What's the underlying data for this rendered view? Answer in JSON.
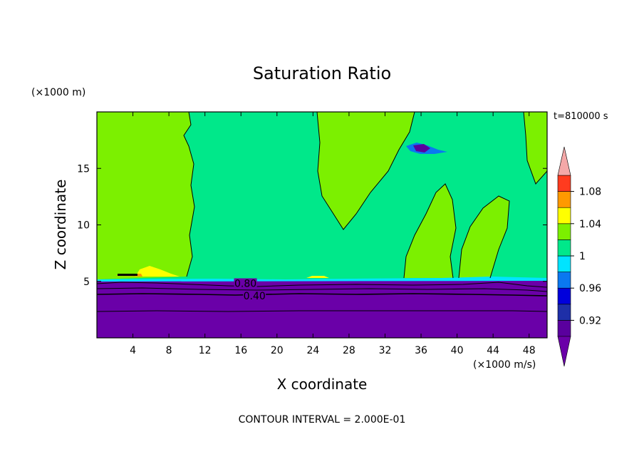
{
  "chart_data": {
    "type": "heatmap",
    "title": "Saturation Ratio",
    "xlabel": "X coordinate",
    "ylabel": "Z coordinate",
    "x_unit": "(×1000 m/s)",
    "y_unit": "(×1000 m)",
    "time_label": "t=810000 s",
    "footer": "CONTOUR INTERVAL = 2.000E-01",
    "xlim": [
      0,
      50
    ],
    "ylim": [
      0,
      20
    ],
    "x_ticks": [
      4,
      8,
      12,
      16,
      20,
      24,
      28,
      32,
      36,
      40,
      44,
      48
    ],
    "y_ticks": [
      5,
      10,
      15
    ],
    "colorbar": {
      "levels": [
        0.9,
        0.92,
        0.94,
        0.96,
        0.98,
        1.0,
        1.02,
        1.04,
        1.06,
        1.08,
        1.1
      ],
      "tick_labels": [
        "0.92",
        "0.96",
        "1",
        "1.04",
        "1.08"
      ],
      "tick_values": [
        0.92,
        0.96,
        1.0,
        1.04,
        1.08
      ],
      "colors": [
        "#5a009e",
        "#1e2fa8",
        "#0000dc",
        "#0a78f0",
        "#00e4ff",
        "#00e88a",
        "#7cf000",
        "#ffff00",
        "#ff9900",
        "#ff3b1f",
        "#f4a8a8"
      ],
      "extend_low_color": "#6a00a8",
      "extend_high_color": "#f4a8a8"
    },
    "contour_labels": [
      {
        "text": "0.80",
        "x": 16.5,
        "z": 4.7
      },
      {
        "text": "0.40",
        "x": 17.5,
        "z": 3.6
      }
    ],
    "regions": {
      "dry_layer_top_z": 5.0,
      "background_value": 0.99,
      "subsaturated_value": 1.01,
      "dry_value": 0.4,
      "description_values": [
        0.4,
        0.8,
        0.99,
        1.01,
        1.05
      ]
    }
  }
}
